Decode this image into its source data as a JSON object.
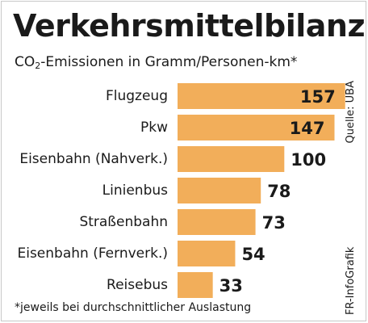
{
  "chart_data": {
    "type": "bar",
    "orientation": "horizontal",
    "title": "Verkehrsmittelbilanz",
    "subtitle_prefix": "CO",
    "subtitle_subscript": "2",
    "subtitle_suffix": "-Emissionen in Gramm/Personen-km*",
    "categories": [
      "Flugzeug",
      "Pkw",
      "Eisenbahn (Nahverk.)",
      "Linienbus",
      "Straßenbahn",
      "Eisenbahn (Fernverk.)",
      "Reisebus"
    ],
    "values": [
      157,
      147,
      100,
      78,
      73,
      54,
      33
    ],
    "value_labels": [
      "157",
      "147",
      "100",
      "78",
      "73",
      "54",
      "33"
    ],
    "footnote": "*jeweils bei durchschnittlicher Auslastung",
    "credit": "FR-InfoGrafik",
    "source": "Quelle: UBA",
    "bar_color": "#f2ae5a",
    "grid": false,
    "legend": "none"
  }
}
